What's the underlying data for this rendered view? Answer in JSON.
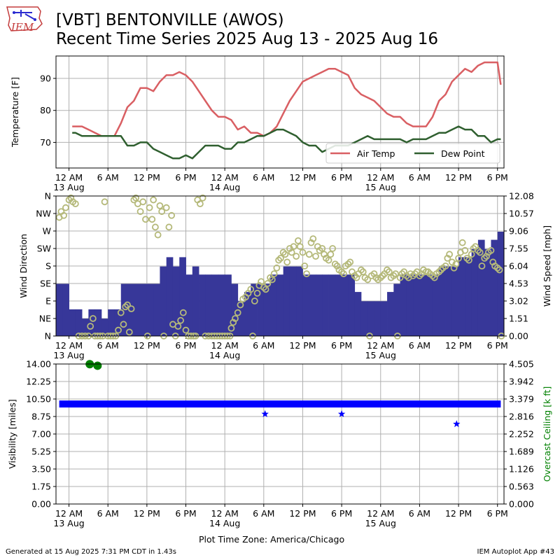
{
  "header": {
    "logo_text": "IEM",
    "title_line1": "[VBT] BENTONVILLE (AWOS)",
    "title_line2": "Recent Time Series 2025 Aug 13 - 2025 Aug 16"
  },
  "footer": {
    "generated": "Generated at 15 Aug 2025 7:31 PM CDT in 1.43s",
    "app": "IEM Autoplot App #43"
  },
  "xlabel": "Plot Time Zone: America/Chicago",
  "colors": {
    "air_temp": "#d95f63",
    "dew_point": "#2f5f2f",
    "wind_dir": "#b5b97a",
    "wind_speed": "#373799",
    "visibility": "#0000ff",
    "ceiling": "#008000"
  },
  "chart_data": [
    {
      "id": "temperature",
      "type": "line",
      "ylabel": "Temperature [F]",
      "ylim": [
        62,
        97
      ],
      "xlim_hours": [
        -2,
        67
      ],
      "x_ticks": [
        {
          "h": 0,
          "label": "12 AM",
          "sub": "13 Aug"
        },
        {
          "h": 6,
          "label": "6 AM",
          "sub": ""
        },
        {
          "h": 12,
          "label": "12 PM",
          "sub": ""
        },
        {
          "h": 18,
          "label": "6 PM",
          "sub": ""
        },
        {
          "h": 24,
          "label": "12 AM",
          "sub": "14 Aug"
        },
        {
          "h": 30,
          "label": "6 AM",
          "sub": ""
        },
        {
          "h": 36,
          "label": "12 PM",
          "sub": ""
        },
        {
          "h": 42,
          "label": "6 PM",
          "sub": ""
        },
        {
          "h": 48,
          "label": "12 AM",
          "sub": "15 Aug"
        },
        {
          "h": 54,
          "label": "6 AM",
          "sub": ""
        },
        {
          "h": 60,
          "label": "12 PM",
          "sub": ""
        },
        {
          "h": 66,
          "label": "6 PM",
          "sub": ""
        }
      ],
      "y_ticks": [
        70,
        80,
        90
      ],
      "grid": true,
      "legend_position": "lower-right",
      "series": [
        {
          "name": "Air Temp",
          "x": [
            0.5,
            1,
            2,
            3,
            4,
            5,
            6,
            7,
            8,
            9,
            10,
            11,
            12,
            13,
            14,
            15,
            16,
            17,
            18,
            19,
            20,
            21,
            22,
            23,
            24,
            25,
            26,
            27,
            28,
            29,
            30,
            31,
            32,
            33,
            34,
            35,
            36,
            37,
            38,
            39,
            40,
            41,
            42,
            43,
            44,
            45,
            46,
            47,
            48,
            49,
            50,
            51,
            52,
            53,
            54,
            55,
            56,
            57,
            58,
            59,
            60,
            61,
            62,
            63,
            64,
            65,
            66,
            66.5
          ],
          "y": [
            75,
            75,
            75,
            74,
            73,
            72,
            72,
            72,
            76,
            81,
            83,
            87,
            87,
            86,
            89,
            91,
            91,
            92,
            91,
            89,
            86,
            83,
            80,
            78,
            78,
            77,
            74,
            75,
            73,
            73,
            72,
            73,
            75,
            79,
            83,
            86,
            89,
            90,
            91,
            92,
            93,
            93,
            92,
            91,
            87,
            85,
            84,
            83,
            81,
            79,
            78,
            78,
            76,
            75,
            75,
            75,
            78,
            83,
            85,
            89,
            91,
            93,
            92,
            94,
            95,
            95,
            95,
            88
          ]
        },
        {
          "name": "Dew Point",
          "x": [
            0.5,
            1,
            2,
            3,
            4,
            5,
            6,
            7,
            8,
            9,
            10,
            11,
            12,
            13,
            14,
            15,
            16,
            17,
            18,
            19,
            20,
            21,
            22,
            23,
            24,
            25,
            26,
            27,
            28,
            29,
            30,
            31,
            32,
            33,
            34,
            35,
            36,
            37,
            38,
            39,
            40,
            41,
            42,
            43,
            44,
            45,
            46,
            47,
            48,
            49,
            50,
            51,
            52,
            53,
            54,
            55,
            56,
            57,
            58,
            59,
            60,
            61,
            62,
            63,
            64,
            65,
            66,
            66.5
          ],
          "y": [
            73,
            73,
            72,
            72,
            72,
            72,
            72,
            72,
            72,
            69,
            69,
            70,
            70,
            68,
            67,
            66,
            65,
            65,
            66,
            65,
            67,
            69,
            69,
            69,
            68,
            68,
            70,
            70,
            71,
            72,
            72,
            73,
            74,
            74,
            73,
            72,
            70,
            69,
            69,
            67,
            68,
            69,
            69,
            69,
            70,
            71,
            72,
            71,
            71,
            71,
            71,
            71,
            70,
            71,
            71,
            71,
            72,
            73,
            73,
            74,
            75,
            74,
            74,
            72,
            72,
            70,
            71,
            71
          ]
        }
      ]
    },
    {
      "id": "wind",
      "type": "bar",
      "ylabel": "Wind Direction",
      "y2label": "Wind Speed [mph]",
      "ylim": [
        0,
        360
      ],
      "y2lim": [
        0,
        12.08
      ],
      "y_ticks": [
        "N",
        "NE",
        "E",
        "SE",
        "S",
        "SW",
        "W",
        "NW",
        "N"
      ],
      "y2_ticks": [
        "0.00",
        "1.51",
        "3.02",
        "4.53",
        "6.04",
        "7.55",
        "9.06",
        "10.57",
        "12.08"
      ],
      "grid": true,
      "series": [
        {
          "name": "Wind Direction",
          "kind": "scatter",
          "x": [
            -1.5,
            -1.2,
            -0.8,
            -0.5,
            0,
            0.3,
            0.6,
            1,
            1.5,
            2,
            2.5,
            3,
            3.3,
            3.7,
            4,
            4.4,
            4.8,
            5.2,
            5.5,
            6,
            6.4,
            6.8,
            7.2,
            7.6,
            8,
            8.4,
            8.7,
            9,
            9.3,
            9.6,
            10,
            10.3,
            10.6,
            11,
            11.4,
            11.8,
            12.1,
            12.4,
            12.8,
            13,
            13.3,
            13.7,
            14,
            14.3,
            14.6,
            15,
            15.4,
            15.8,
            16,
            16.4,
            16.8,
            17.2,
            17.6,
            18,
            18.4,
            18.8,
            19.2,
            19.5,
            19.8,
            20.2,
            20.6,
            21,
            21.5,
            22,
            22.4,
            22.8,
            23.2,
            23.6,
            24,
            24.4,
            24.8,
            25,
            25.3,
            25.6,
            26,
            26.4,
            26.8,
            27.2,
            27.6,
            28,
            28.3,
            28.6,
            29,
            29.3,
            29.6,
            30,
            30.3,
            30.6,
            31,
            31.3,
            31.6,
            32,
            32.3,
            32.6,
            33,
            33.3,
            33.6,
            34,
            34.3,
            34.6,
            35,
            35.3,
            35.6,
            36,
            36.3,
            36.6,
            37,
            37.3,
            37.6,
            38,
            38.3,
            38.6,
            39,
            39.3,
            39.6,
            40,
            40.3,
            40.6,
            41,
            41.3,
            41.6,
            42,
            42.3,
            42.6,
            43,
            43.3,
            43.6,
            44,
            44.3,
            44.6,
            45,
            45.3,
            45.6,
            46,
            46.3,
            46.6,
            47,
            47.3,
            47.6,
            48,
            48.3,
            48.6,
            49,
            49.3,
            49.6,
            50,
            50.3,
            50.6,
            51,
            51.3,
            51.6,
            52,
            52.3,
            52.6,
            53,
            53.3,
            53.6,
            54,
            54.3,
            54.6,
            55,
            55.3,
            55.6,
            56,
            56.3,
            56.6,
            57,
            57.3,
            57.6,
            58,
            58.3,
            58.6,
            59,
            59.3,
            59.6,
            60,
            60.3,
            60.6,
            61,
            61.3,
            61.6,
            62,
            62.3,
            62.6,
            63,
            63.3,
            63.6,
            64,
            64.3,
            64.6,
            65,
            65.3,
            65.6,
            66,
            66.3,
            66.6
          ],
          "y": [
            305,
            320,
            310,
            330,
            350,
            355,
            345,
            340,
            0,
            0,
            0,
            0,
            25,
            45,
            0,
            0,
            0,
            0,
            345,
            0,
            0,
            0,
            0,
            15,
            60,
            30,
            75,
            80,
            10,
            70,
            350,
            355,
            340,
            320,
            345,
            300,
            0,
            330,
            300,
            350,
            280,
            260,
            335,
            320,
            0,
            330,
            280,
            310,
            30,
            0,
            25,
            40,
            60,
            15,
            0,
            0,
            0,
            0,
            350,
            340,
            355,
            0,
            0,
            0,
            0,
            0,
            0,
            0,
            0,
            0,
            0,
            20,
            35,
            45,
            60,
            80,
            95,
            100,
            110,
            120,
            0,
            90,
            110,
            130,
            140,
            125,
            120,
            135,
            150,
            145,
            160,
            175,
            195,
            200,
            215,
            210,
            190,
            225,
            215,
            230,
            205,
            245,
            230,
            215,
            180,
            160,
            210,
            240,
            250,
            205,
            230,
            220,
            225,
            210,
            200,
            195,
            210,
            225,
            185,
            180,
            170,
            165,
            160,
            180,
            185,
            190,
            165,
            155,
            150,
            160,
            170,
            165,
            150,
            145,
            0,
            155,
            160,
            150,
            145,
            150,
            155,
            160,
            170,
            165,
            150,
            155,
            160,
            0,
            150,
            160,
            165,
            155,
            150,
            160,
            155,
            160,
            165,
            155,
            160,
            170,
            165,
            165,
            160,
            155,
            150,
            160,
            165,
            170,
            175,
            180,
            200,
            210,
            190,
            175,
            185,
            200,
            215,
            240,
            220,
            200,
            195,
            210,
            225,
            230,
            220,
            215,
            180,
            200,
            205,
            215,
            220,
            190,
            180,
            175,
            170,
            0
          ]
        },
        {
          "name": "Wind Speed",
          "kind": "bar",
          "x": [
            -1.5,
            -0.5,
            0.5,
            1.5,
            2.5,
            3.5,
            4.5,
            5.5,
            6.5,
            7.5,
            8.5,
            9.5,
            10.5,
            11.5,
            12.5,
            13.5,
            14.5,
            15.5,
            16.5,
            17.5,
            18.5,
            19.5,
            20.5,
            21.5,
            22.5,
            23.5,
            24.5,
            25.5,
            26.5,
            27.5,
            28.5,
            29.5,
            30.5,
            31.5,
            32.5,
            33.5,
            34.5,
            35.5,
            36.5,
            37.5,
            38.5,
            39.5,
            40.5,
            41.5,
            42.5,
            43.5,
            44.5,
            45.5,
            46.5,
            47.5,
            48.5,
            49.5,
            50.5,
            51.5,
            52.5,
            53.5,
            54.5,
            55.5,
            56.5,
            57.5,
            58.5,
            59.5,
            60.5,
            61.5,
            62.5,
            63.5,
            64.5,
            65.5,
            66.5
          ],
          "y": [
            4.5,
            4.5,
            2.3,
            2.3,
            1.5,
            2.3,
            2.3,
            1.5,
            2.3,
            2.3,
            4.5,
            4.5,
            4.5,
            4.5,
            4.5,
            4.5,
            6.0,
            6.8,
            6.0,
            6.8,
            5.3,
            6.0,
            5.3,
            5.3,
            5.3,
            5.3,
            5.3,
            4.5,
            3.0,
            3.8,
            4.5,
            4.5,
            4.5,
            5.3,
            5.3,
            6.0,
            6.0,
            6.0,
            5.3,
            5.3,
            5.3,
            5.3,
            5.3,
            5.3,
            5.3,
            5.3,
            3.8,
            3.0,
            3.0,
            3.0,
            3.0,
            3.8,
            4.5,
            5.3,
            5.3,
            5.3,
            5.3,
            5.3,
            5.3,
            6.0,
            6.0,
            6.0,
            6.8,
            6.8,
            7.5,
            8.3,
            7.5,
            8.3,
            9.0
          ]
        }
      ]
    },
    {
      "id": "visibility",
      "type": "scatter",
      "ylabel": "Visibility [miles]",
      "y2label": "Overcast Ceiling [k ft]",
      "ylim": [
        0,
        14
      ],
      "y2lim": [
        0,
        4.505
      ],
      "y_ticks": [
        "0.00",
        "1.75",
        "3.50",
        "5.25",
        "7.00",
        "8.75",
        "10.50",
        "12.25",
        "14.00"
      ],
      "y2_ticks": [
        "0.000",
        "0.563",
        "1.126",
        "1.689",
        "2.252",
        "2.816",
        "3.379",
        "3.942",
        "4.505"
      ],
      "grid": true,
      "series": [
        {
          "name": "Visibility",
          "kind": "band",
          "x": [
            -1.5,
            66.5
          ],
          "y": [
            10,
            10
          ]
        },
        {
          "name": "Visibility (reduced)",
          "kind": "star",
          "x": [
            30.2,
            42.0,
            59.7
          ],
          "y": [
            9,
            9,
            8
          ]
        },
        {
          "name": "Overcast Ceiling",
          "kind": "dot",
          "x": [
            3.2,
            4.4
          ],
          "y": [
            4.5,
            4.45
          ]
        }
      ]
    }
  ]
}
